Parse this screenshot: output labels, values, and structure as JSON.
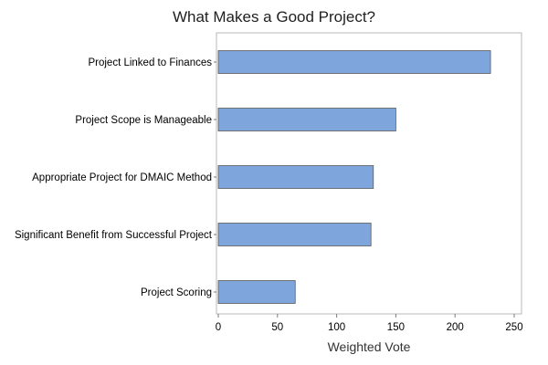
{
  "chart_data": {
    "type": "bar",
    "orientation": "horizontal",
    "title": "What Makes a Good Project?",
    "xlabel": "Weighted Vote",
    "ylabel": "",
    "categories": [
      "Project Linked to Finances",
      "Project Scope is Manageable",
      "Appropriate Project for DMAIC Method",
      "Significant Benefit from Successful Project",
      "Project Scoring"
    ],
    "values": [
      230,
      150,
      131,
      129,
      65
    ],
    "xlim": [
      0,
      250
    ],
    "xticks": [
      0,
      50,
      100,
      150,
      200,
      250
    ],
    "grid": false,
    "legend": "none",
    "colors": {
      "bar_fill": "#7ea6dc",
      "bar_stroke": "#5a5a5a",
      "frame": "#b8b8b8",
      "plot_background": "#ffffff"
    }
  }
}
